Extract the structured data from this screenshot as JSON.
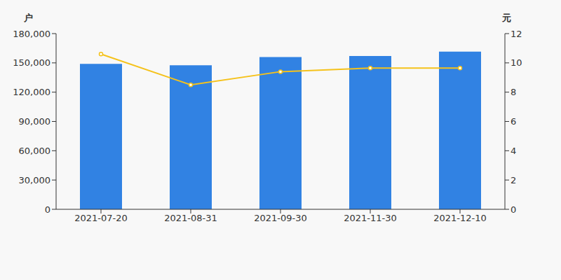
{
  "chart_data": {
    "type": "bar",
    "categories": [
      "2021-07-20",
      "2021-08-31",
      "2021-09-30",
      "2021-11-30",
      "2021-12-10"
    ],
    "series": [
      {
        "name": "户",
        "type": "bar",
        "color": "#3182e3",
        "values": [
          149000,
          147500,
          156000,
          157000,
          161500
        ]
      },
      {
        "name": "元",
        "type": "line",
        "color": "#f5c21b",
        "axis": "y2",
        "marker": "circle",
        "values": [
          10.6,
          8.5,
          9.4,
          9.65,
          9.65
        ]
      }
    ],
    "ylabel": "户",
    "y2label": "元",
    "ylim": [
      0,
      180000
    ],
    "yticks": [
      0,
      {
        "value": 30000,
        "label": "30,000"
      },
      {
        "value": 60000,
        "label": "60,000"
      },
      {
        "value": 90000,
        "label": "90,000"
      },
      {
        "value": 120000,
        "label": "120,000"
      },
      {
        "value": 150000,
        "label": "150,000"
      },
      {
        "value": 180000,
        "label": "180,000"
      }
    ],
    "y2lim": [
      0,
      12
    ],
    "y2ticks": [
      0,
      2,
      4,
      6,
      8,
      10,
      12
    ],
    "grid": false
  }
}
